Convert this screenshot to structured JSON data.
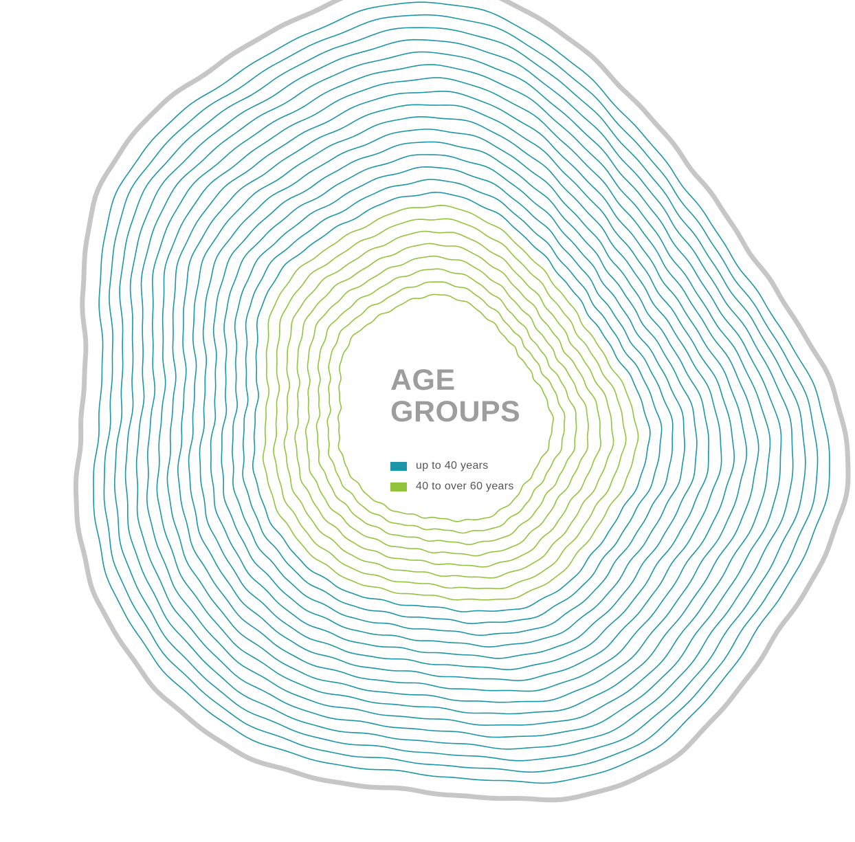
{
  "chart_data": {
    "type": "other",
    "title_lines": [
      "AGE",
      "GROUPS"
    ],
    "legend": [
      {
        "label": "up to 40 years",
        "color": "#1a96a6"
      },
      {
        "label": "40 to over 60 years",
        "color": "#92c43b"
      }
    ],
    "series": [
      {
        "name": "40 to over 60 years",
        "rings": 8
      },
      {
        "name": "up to 40 years",
        "rings": 16
      }
    ],
    "outline_color": "#c6c6c6"
  }
}
